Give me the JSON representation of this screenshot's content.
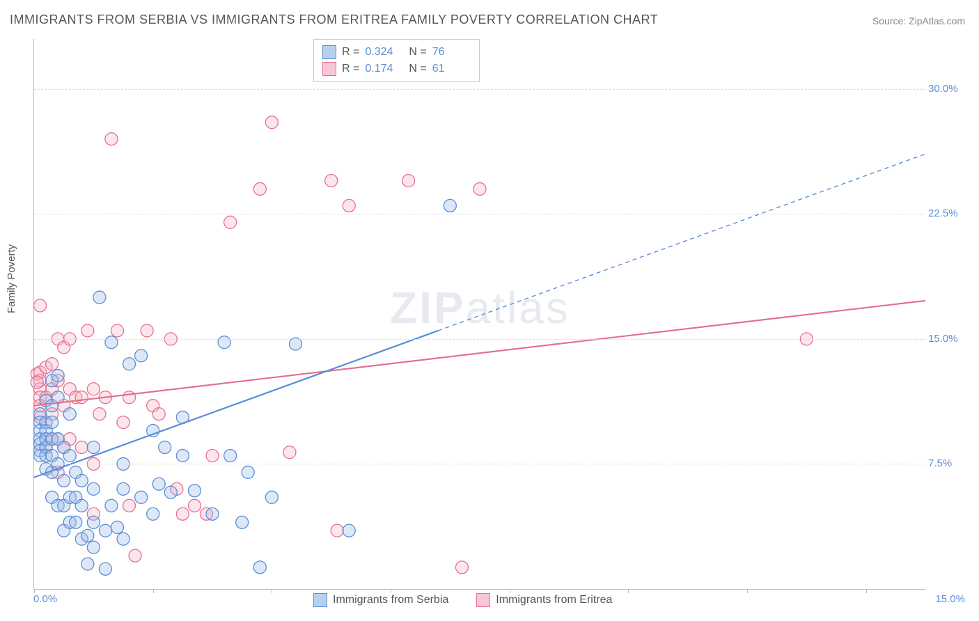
{
  "title": "IMMIGRANTS FROM SERBIA VS IMMIGRANTS FROM ERITREA FAMILY POVERTY CORRELATION CHART",
  "source": "Source: ZipAtlas.com",
  "watermark_zip": "ZIP",
  "watermark_atlas": "atlas",
  "ylabel": "Family Poverty",
  "chart": {
    "type": "scatter",
    "xlim": [
      0,
      15
    ],
    "ylim": [
      0,
      33
    ],
    "y_ticks": [
      7.5,
      15.0,
      22.5,
      30.0
    ],
    "y_tick_labels": [
      "7.5%",
      "15.0%",
      "22.5%",
      "30.0%"
    ],
    "x_tick_positions": [
      0,
      2,
      4,
      6,
      8,
      10,
      12,
      14
    ],
    "x_tick_labels": [
      "0.0%",
      "15.0%"
    ],
    "grid_color": "#dddddd",
    "axis_color": "#bbbbbb",
    "background_color": "#ffffff",
    "marker_radius": 9,
    "marker_fill_opacity": 0.35,
    "marker_stroke_width": 1.3,
    "regression_line_width": 2.2,
    "dash_pattern": "6 5"
  },
  "series": {
    "blue": {
      "label": "Immigrants from Serbia",
      "color_fill": "#9dbce8",
      "color_stroke": "#5b8dd6",
      "R": "0.324",
      "N": "76",
      "regression": {
        "x1": 0,
        "y1": 6.7,
        "x2_solid": 6.8,
        "y2_solid": 15.5,
        "x2": 15,
        "y2": 26.1
      },
      "points": [
        [
          0.1,
          10.5
        ],
        [
          0.1,
          10.0
        ],
        [
          0.1,
          9.5
        ],
        [
          0.1,
          9.0
        ],
        [
          0.1,
          8.7
        ],
        [
          0.1,
          8.3
        ],
        [
          0.1,
          8.0
        ],
        [
          0.2,
          11.3
        ],
        [
          0.2,
          10.0
        ],
        [
          0.2,
          9.5
        ],
        [
          0.2,
          9.0
        ],
        [
          0.2,
          8.5
        ],
        [
          0.2,
          8.0
        ],
        [
          0.2,
          7.2
        ],
        [
          0.3,
          12.5
        ],
        [
          0.3,
          11.0
        ],
        [
          0.3,
          10.0
        ],
        [
          0.3,
          9.0
        ],
        [
          0.3,
          8.0
        ],
        [
          0.3,
          7.0
        ],
        [
          0.3,
          5.5
        ],
        [
          0.4,
          12.8
        ],
        [
          0.4,
          11.5
        ],
        [
          0.4,
          9.0
        ],
        [
          0.4,
          7.5
        ],
        [
          0.4,
          5.0
        ],
        [
          0.5,
          8.5
        ],
        [
          0.5,
          6.5
        ],
        [
          0.5,
          5.0
        ],
        [
          0.5,
          3.5
        ],
        [
          0.6,
          10.5
        ],
        [
          0.6,
          8.0
        ],
        [
          0.6,
          5.5
        ],
        [
          0.6,
          4.0
        ],
        [
          0.7,
          7.0
        ],
        [
          0.7,
          5.5
        ],
        [
          0.7,
          4.0
        ],
        [
          0.8,
          6.5
        ],
        [
          0.8,
          5.0
        ],
        [
          0.8,
          3.0
        ],
        [
          0.9,
          3.2
        ],
        [
          1.0,
          8.5
        ],
        [
          1.0,
          6.0
        ],
        [
          1.0,
          4.0
        ],
        [
          1.0,
          2.5
        ],
        [
          1.1,
          17.5
        ],
        [
          1.2,
          3.5
        ],
        [
          1.2,
          1.2
        ],
        [
          1.3,
          14.8
        ],
        [
          1.3,
          5.0
        ],
        [
          1.4,
          3.7
        ],
        [
          1.5,
          6.0
        ],
        [
          1.5,
          7.5
        ],
        [
          1.5,
          3.0
        ],
        [
          1.6,
          13.5
        ],
        [
          1.8,
          5.5
        ],
        [
          1.8,
          14.0
        ],
        [
          2.0,
          4.5
        ],
        [
          2.0,
          9.5
        ],
        [
          2.1,
          6.3
        ],
        [
          2.2,
          8.5
        ],
        [
          2.3,
          5.8
        ],
        [
          2.5,
          8.0
        ],
        [
          2.5,
          10.3
        ],
        [
          2.7,
          5.9
        ],
        [
          3.0,
          4.5
        ],
        [
          3.2,
          14.8
        ],
        [
          3.3,
          8.0
        ],
        [
          3.5,
          4.0
        ],
        [
          3.6,
          7.0
        ],
        [
          3.8,
          1.3
        ],
        [
          4.0,
          5.5
        ],
        [
          4.4,
          14.7
        ],
        [
          5.3,
          3.5
        ],
        [
          7.0,
          23.0
        ],
        [
          0.9,
          1.5
        ]
      ]
    },
    "pink": {
      "label": "Immigrants from Eritrea",
      "color_fill": "#f3b7c8",
      "color_stroke": "#e6708f",
      "R": "0.174",
      "N": "61",
      "regression": {
        "x1": 0,
        "y1": 11.0,
        "x2_solid": 15,
        "y2_solid": 17.3,
        "x2": 15,
        "y2": 17.3
      },
      "points": [
        [
          0.05,
          12.9
        ],
        [
          0.1,
          13.0
        ],
        [
          0.1,
          12.5
        ],
        [
          0.1,
          12.0
        ],
        [
          0.1,
          11.5
        ],
        [
          0.1,
          11.0
        ],
        [
          0.1,
          10.3
        ],
        [
          0.1,
          17.0
        ],
        [
          0.2,
          13.3
        ],
        [
          0.2,
          11.5
        ],
        [
          0.2,
          8.5
        ],
        [
          0.3,
          13.5
        ],
        [
          0.3,
          12.0
        ],
        [
          0.3,
          10.5
        ],
        [
          0.3,
          9.0
        ],
        [
          0.4,
          15.0
        ],
        [
          0.4,
          12.5
        ],
        [
          0.4,
          9.0
        ],
        [
          0.4,
          7.0
        ],
        [
          0.5,
          14.5
        ],
        [
          0.5,
          11.0
        ],
        [
          0.5,
          8.5
        ],
        [
          0.6,
          15.0
        ],
        [
          0.6,
          12.0
        ],
        [
          0.6,
          9.0
        ],
        [
          0.7,
          11.5
        ],
        [
          0.8,
          11.5
        ],
        [
          0.8,
          8.5
        ],
        [
          0.9,
          15.5
        ],
        [
          1.0,
          12.0
        ],
        [
          1.0,
          7.5
        ],
        [
          1.0,
          4.5
        ],
        [
          1.1,
          10.5
        ],
        [
          1.2,
          11.5
        ],
        [
          1.3,
          27.0
        ],
        [
          1.4,
          15.5
        ],
        [
          1.5,
          10.0
        ],
        [
          1.6,
          11.5
        ],
        [
          1.6,
          5.0
        ],
        [
          1.7,
          2.0
        ],
        [
          1.9,
          15.5
        ],
        [
          2.0,
          11.0
        ],
        [
          2.1,
          10.5
        ],
        [
          2.3,
          15.0
        ],
        [
          2.4,
          6.0
        ],
        [
          2.5,
          4.5
        ],
        [
          2.7,
          5.0
        ],
        [
          2.9,
          4.5
        ],
        [
          3.0,
          8.0
        ],
        [
          3.3,
          22.0
        ],
        [
          3.8,
          24.0
        ],
        [
          4.0,
          28.0
        ],
        [
          4.3,
          8.2
        ],
        [
          5.0,
          24.5
        ],
        [
          5.1,
          3.5
        ],
        [
          5.3,
          23.0
        ],
        [
          6.3,
          24.5
        ],
        [
          7.2,
          1.3
        ],
        [
          7.5,
          24.0
        ],
        [
          13.0,
          15.0
        ],
        [
          0.05,
          12.4
        ]
      ]
    }
  },
  "legend": {
    "r_label": "R =",
    "n_label": "N ="
  }
}
